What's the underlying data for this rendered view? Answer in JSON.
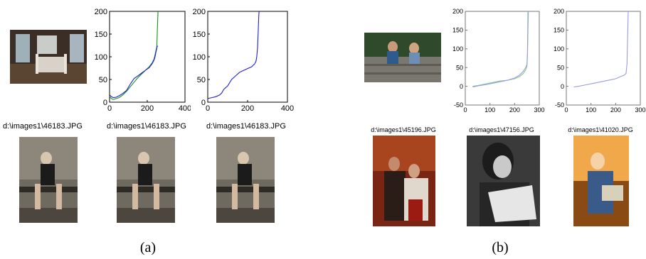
{
  "panels": [
    {
      "caption": "(a)",
      "filenames": [
        "d:\\images1\\46183.JPG",
        "d:\\images1\\46183.JPG",
        "d:\\images1\\46183.JPG"
      ],
      "query_image": "bedroom-photo",
      "result_images": [
        "woman-on-bench-photo",
        "woman-on-bench-photo",
        "woman-on-bench-photo"
      ]
    },
    {
      "caption": "(b)",
      "filenames": [
        "d:\\images1\\45196.JPG",
        "d:\\images1\\47156.JPG",
        "d:\\images1\\41020.JPG"
      ],
      "query_image": "children-on-stairs-photo",
      "result_images": [
        "two-men-photo",
        "woman-reading-photo",
        "child-with-book-photo"
      ]
    }
  ],
  "chart_data": [
    {
      "type": "line",
      "xlim": [
        0,
        400
      ],
      "ylim": [
        0,
        200
      ],
      "xticks": [
        "0",
        "200",
        "400"
      ],
      "yticks": [
        "0",
        "50",
        "100",
        "150",
        "200"
      ],
      "series": [
        {
          "color": "#1a8f1a",
          "x": [
            0,
            10,
            20,
            35,
            50,
            70,
            90,
            110,
            130,
            150,
            170,
            190,
            210,
            225,
            235,
            240,
            244,
            247,
            250,
            252,
            255,
            257
          ],
          "y": [
            12,
            8,
            6,
            8,
            10,
            16,
            24,
            34,
            44,
            54,
            62,
            70,
            78,
            86,
            94,
            102,
            110,
            116,
            120,
            140,
            180,
            200
          ]
        },
        {
          "color": "#1f1fd6",
          "x": [
            0,
            10,
            20,
            35,
            50,
            70,
            90,
            110,
            130,
            150,
            170,
            190,
            210,
            225,
            235,
            240,
            244,
            248,
            250,
            252,
            255
          ],
          "y": [
            16,
            12,
            10,
            11,
            14,
            19,
            26,
            40,
            52,
            58,
            64,
            70,
            76,
            84,
            92,
            98,
            106,
            114,
            118,
            122,
            124
          ]
        }
      ]
    },
    {
      "type": "line",
      "xlim": [
        0,
        400
      ],
      "ylim": [
        0,
        200
      ],
      "xticks": [
        "0",
        "200",
        "400"
      ],
      "yticks": [
        "0",
        "50",
        "100",
        "150",
        "200"
      ],
      "series": [
        {
          "color": "#1f1fd6",
          "x": [
            0,
            20,
            40,
            60,
            70,
            80,
            100,
            120,
            140,
            160,
            180,
            200,
            220,
            235,
            242,
            246,
            250,
            253,
            256,
            258
          ],
          "y": [
            8,
            10,
            12,
            16,
            20,
            28,
            36,
            50,
            58,
            66,
            70,
            74,
            78,
            84,
            90,
            100,
            120,
            150,
            190,
            200
          ]
        }
      ]
    },
    {
      "type": "line",
      "xlim": [
        0,
        300
      ],
      "ylim": [
        -50,
        200
      ],
      "xticks": [
        "0",
        "100",
        "200",
        "300"
      ],
      "yticks": [
        "-50",
        "0",
        "50",
        "100",
        "150",
        "200"
      ],
      "series": [
        {
          "color": "#88c888",
          "x": [
            30,
            50,
            80,
            110,
            140,
            170,
            200,
            220,
            235,
            245,
            250,
            252,
            254,
            256
          ],
          "y": [
            0,
            2,
            6,
            10,
            14,
            16,
            20,
            26,
            34,
            44,
            54,
            80,
            150,
            200
          ]
        },
        {
          "color": "#9a9ae8",
          "x": [
            30,
            50,
            80,
            110,
            140,
            170,
            200,
            220,
            235,
            245,
            250,
            252,
            254
          ],
          "y": [
            -2,
            1,
            4,
            8,
            12,
            16,
            22,
            30,
            40,
            50,
            58,
            90,
            200
          ]
        }
      ]
    },
    {
      "type": "line",
      "xlim": [
        0,
        300
      ],
      "ylim": [
        -50,
        200
      ],
      "xticks": [
        "0",
        "100",
        "200",
        "300"
      ],
      "yticks": [
        "-50",
        "0",
        "50",
        "100",
        "150",
        "200"
      ],
      "series": [
        {
          "color": "#9a9ae8",
          "x": [
            30,
            50,
            80,
            110,
            140,
            170,
            200,
            220,
            235,
            242,
            246,
            249,
            251
          ],
          "y": [
            -2,
            0,
            4,
            8,
            12,
            16,
            20,
            26,
            30,
            34,
            60,
            140,
            200
          ]
        }
      ]
    }
  ]
}
